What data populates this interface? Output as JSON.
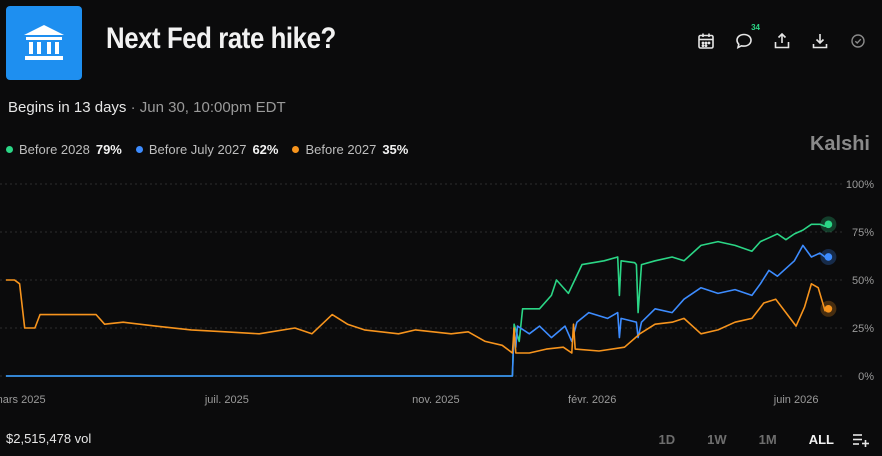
{
  "header": {
    "title": "Next Fed rate hike?",
    "logo_icon": "bank-icon",
    "logo_color": "#1e8ff0",
    "comment_count": "34",
    "tools": [
      "calendar-icon",
      "comment-icon",
      "share-icon",
      "download-icon",
      "check-circle-icon"
    ]
  },
  "meta": {
    "begins": "Begins in 13 days",
    "separator": "·",
    "date": "Jun 30, 10:00pm EDT"
  },
  "legend": [
    {
      "label": "Before 2028",
      "value": "79%",
      "color": "#2bd686"
    },
    {
      "label": "Before July 2027",
      "value": "62%",
      "color": "#3d8cff"
    },
    {
      "label": "Before 2027",
      "value": "35%",
      "color": "#f7941d"
    }
  ],
  "brand": "Kalshi",
  "footer": {
    "volume": "$2,515,478 vol",
    "ranges": [
      "1D",
      "1W",
      "1M",
      "ALL"
    ],
    "active_range": "ALL",
    "settings_icon": "list-add-icon"
  },
  "chart_data": {
    "type": "line",
    "x_tick_labels": [
      "mars 2025",
      "juil. 2025",
      "nov. 2025",
      "févr. 2026",
      "juin 2026"
    ],
    "x_tick_dates": [
      "2025-03-01",
      "2025-07-01",
      "2025-11-01",
      "2026-02-01",
      "2026-06-01"
    ],
    "xlim": [
      "2025-02-21",
      "2026-06-28"
    ],
    "y_tick_labels": [
      "0%",
      "25%",
      "50%",
      "75%",
      "100%"
    ],
    "y_ticks": [
      0,
      25,
      50,
      75,
      100
    ],
    "ylim": [
      0,
      100
    ],
    "grid": "horizontal dashed",
    "series": [
      {
        "name": "Before 2028",
        "color": "#2bd686",
        "end_value": 79,
        "points": [
          [
            "2025-02-21",
            0
          ],
          [
            "2025-12-16",
            0
          ],
          [
            "2025-12-17",
            27
          ],
          [
            "2025-12-20",
            18
          ],
          [
            "2025-12-22",
            35
          ],
          [
            "2026-01-01",
            35
          ],
          [
            "2026-01-08",
            42
          ],
          [
            "2026-01-11",
            50
          ],
          [
            "2026-01-18",
            43
          ],
          [
            "2026-01-26",
            58
          ],
          [
            "2026-02-08",
            60
          ],
          [
            "2026-02-16",
            62
          ],
          [
            "2026-02-17",
            42
          ],
          [
            "2026-02-18",
            60
          ],
          [
            "2026-02-26",
            59
          ],
          [
            "2026-02-27",
            58
          ],
          [
            "2026-02-28",
            33
          ],
          [
            "2026-03-02",
            58
          ],
          [
            "2026-03-10",
            60
          ],
          [
            "2026-03-20",
            62
          ],
          [
            "2026-03-27",
            60
          ],
          [
            "2026-04-06",
            68
          ],
          [
            "2026-04-16",
            70
          ],
          [
            "2026-04-26",
            68
          ],
          [
            "2026-05-06",
            65
          ],
          [
            "2026-05-11",
            70
          ],
          [
            "2026-05-16",
            72
          ],
          [
            "2026-05-21",
            74
          ],
          [
            "2026-05-26",
            71
          ],
          [
            "2026-05-31",
            74
          ],
          [
            "2026-06-05",
            76
          ],
          [
            "2026-06-10",
            79
          ],
          [
            "2026-06-15",
            79
          ],
          [
            "2026-06-18",
            78
          ],
          [
            "2026-06-20",
            79
          ]
        ]
      },
      {
        "name": "Before July 2027",
        "color": "#3d8cff",
        "end_value": 62,
        "points": [
          [
            "2025-02-21",
            0
          ],
          [
            "2025-12-16",
            0
          ],
          [
            "2025-12-17",
            25
          ],
          [
            "2025-12-18",
            15
          ],
          [
            "2025-12-19",
            26
          ],
          [
            "2025-12-26",
            22
          ],
          [
            "2026-01-01",
            26
          ],
          [
            "2026-01-08",
            20
          ],
          [
            "2026-01-16",
            26
          ],
          [
            "2026-01-20",
            18
          ],
          [
            "2026-01-23",
            28
          ],
          [
            "2026-01-30",
            33
          ],
          [
            "2026-02-10",
            30
          ],
          [
            "2026-02-16",
            33
          ],
          [
            "2026-02-17",
            20
          ],
          [
            "2026-02-18",
            30
          ],
          [
            "2026-02-27",
            28
          ],
          [
            "2026-02-28",
            20
          ],
          [
            "2026-03-02",
            28
          ],
          [
            "2026-03-10",
            35
          ],
          [
            "2026-03-20",
            33
          ],
          [
            "2026-03-27",
            40
          ],
          [
            "2026-04-06",
            46
          ],
          [
            "2026-04-16",
            43
          ],
          [
            "2026-04-26",
            45
          ],
          [
            "2026-05-06",
            42
          ],
          [
            "2026-05-11",
            48
          ],
          [
            "2026-05-16",
            55
          ],
          [
            "2026-05-21",
            52
          ],
          [
            "2026-05-31",
            60
          ],
          [
            "2026-06-05",
            68
          ],
          [
            "2026-06-10",
            62
          ],
          [
            "2026-06-15",
            64
          ],
          [
            "2026-06-18",
            62
          ],
          [
            "2026-06-20",
            62
          ]
        ]
      },
      {
        "name": "Before 2027",
        "color": "#f7941d",
        "end_value": 35,
        "points": [
          [
            "2025-02-21",
            50
          ],
          [
            "2025-02-26",
            50
          ],
          [
            "2025-03-01",
            48
          ],
          [
            "2025-03-04",
            25
          ],
          [
            "2025-03-10",
            25
          ],
          [
            "2025-03-13",
            32
          ],
          [
            "2025-03-31",
            32
          ],
          [
            "2025-04-15",
            32
          ],
          [
            "2025-04-20",
            27
          ],
          [
            "2025-05-01",
            28
          ],
          [
            "2025-05-20",
            26
          ],
          [
            "2025-06-10",
            24
          ],
          [
            "2025-06-30",
            23
          ],
          [
            "2025-07-20",
            22
          ],
          [
            "2025-08-10",
            25
          ],
          [
            "2025-08-20",
            22
          ],
          [
            "2025-09-01",
            32
          ],
          [
            "2025-09-10",
            27
          ],
          [
            "2025-09-20",
            24
          ],
          [
            "2025-10-10",
            22
          ],
          [
            "2025-10-20",
            24
          ],
          [
            "2025-11-10",
            22
          ],
          [
            "2025-11-20",
            23
          ],
          [
            "2025-11-30",
            18
          ],
          [
            "2025-12-10",
            16
          ],
          [
            "2025-12-16",
            12
          ],
          [
            "2025-12-17",
            25
          ],
          [
            "2025-12-18",
            12
          ],
          [
            "2025-12-26",
            12
          ],
          [
            "2026-01-05",
            14
          ],
          [
            "2026-01-15",
            15
          ],
          [
            "2026-01-20",
            12
          ],
          [
            "2026-01-21",
            27
          ],
          [
            "2026-01-22",
            14
          ],
          [
            "2026-02-05",
            13
          ],
          [
            "2026-02-20",
            15
          ],
          [
            "2026-03-01",
            22
          ],
          [
            "2026-03-10",
            27
          ],
          [
            "2026-03-20",
            28
          ],
          [
            "2026-03-27",
            30
          ],
          [
            "2026-04-06",
            22
          ],
          [
            "2026-04-16",
            24
          ],
          [
            "2026-04-26",
            28
          ],
          [
            "2026-05-06",
            30
          ],
          [
            "2026-05-13",
            38
          ],
          [
            "2026-05-20",
            40
          ],
          [
            "2026-05-26",
            33
          ],
          [
            "2026-06-01",
            26
          ],
          [
            "2026-06-06",
            36
          ],
          [
            "2026-06-10",
            48
          ],
          [
            "2026-06-14",
            46
          ],
          [
            "2026-06-18",
            34
          ],
          [
            "2026-06-20",
            35
          ]
        ]
      }
    ]
  }
}
